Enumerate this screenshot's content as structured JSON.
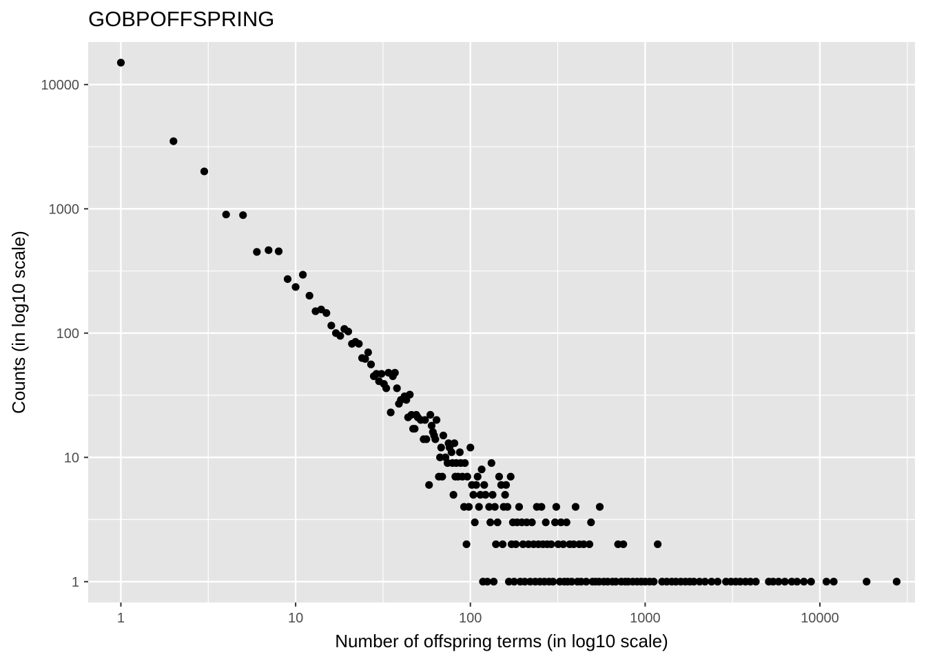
{
  "chart_data": {
    "type": "scatter",
    "title": "GOBPOFFSPRING",
    "xlabel": "Number of offspring terms (in log10 scale)",
    "ylabel": "Counts (in log10 scale)",
    "x_scale": "log10",
    "y_scale": "log10",
    "xlim": [
      0.65,
      35000
    ],
    "ylim": [
      0.68,
      22000
    ],
    "x_ticks": [
      1,
      10,
      100,
      1000,
      10000
    ],
    "x_tick_labels": [
      "1",
      "10",
      "100",
      "1000",
      "10000"
    ],
    "y_ticks": [
      1,
      10,
      100,
      1000,
      10000
    ],
    "y_tick_labels": [
      "1",
      "10",
      "100",
      "1000",
      "10000"
    ],
    "grid": true,
    "colors": {
      "panel": "#e5e5e5",
      "grid": "#ffffff",
      "point": "#000000",
      "tick_text": "#4d4d4d"
    },
    "points": [
      [
        1,
        15000
      ],
      [
        2,
        3500
      ],
      [
        3,
        2000
      ],
      [
        4,
        900
      ],
      [
        5,
        890
      ],
      [
        6,
        450
      ],
      [
        7,
        465
      ],
      [
        8,
        455
      ],
      [
        9,
        272
      ],
      [
        10,
        235
      ],
      [
        11,
        295
      ],
      [
        12,
        200
      ],
      [
        13,
        150
      ],
      [
        14,
        155
      ],
      [
        15,
        145
      ],
      [
        16,
        115
      ],
      [
        17,
        100
      ],
      [
        18,
        95
      ],
      [
        19,
        108
      ],
      [
        20,
        103
      ],
      [
        21,
        82
      ],
      [
        22,
        85
      ],
      [
        23,
        82
      ],
      [
        24,
        63
      ],
      [
        25,
        62
      ],
      [
        26,
        70
      ],
      [
        27,
        56
      ],
      [
        28,
        45
      ],
      [
        29,
        47
      ],
      [
        30,
        41
      ],
      [
        31,
        47
      ],
      [
        32,
        39
      ],
      [
        33,
        36
      ],
      [
        34,
        48
      ],
      [
        35,
        23
      ],
      [
        36,
        45
      ],
      [
        37,
        48
      ],
      [
        38,
        36
      ],
      [
        39,
        27
      ],
      [
        40,
        29
      ],
      [
        42,
        31
      ],
      [
        43,
        29
      ],
      [
        44,
        21
      ],
      [
        45,
        32
      ],
      [
        46,
        22
      ],
      [
        47,
        17
      ],
      [
        48,
        17
      ],
      [
        49,
        22
      ],
      [
        50,
        21
      ],
      [
        52,
        20
      ],
      [
        54,
        14
      ],
      [
        55,
        20
      ],
      [
        56,
        14
      ],
      [
        58,
        6
      ],
      [
        59,
        22
      ],
      [
        60,
        18
      ],
      [
        61,
        16
      ],
      [
        62,
        15
      ],
      [
        63,
        14
      ],
      [
        64,
        20
      ],
      [
        66,
        7
      ],
      [
        67,
        10
      ],
      [
        68,
        12
      ],
      [
        69,
        7
      ],
      [
        70,
        15
      ],
      [
        72,
        10
      ],
      [
        74,
        9
      ],
      [
        75,
        13
      ],
      [
        76,
        12
      ],
      [
        78,
        11
      ],
      [
        79,
        9
      ],
      [
        80,
        5
      ],
      [
        81,
        13
      ],
      [
        82,
        7
      ],
      [
        83,
        9
      ],
      [
        85,
        7
      ],
      [
        87,
        11
      ],
      [
        88,
        9
      ],
      [
        90,
        7
      ],
      [
        92,
        4
      ],
      [
        93,
        9
      ],
      [
        95,
        2
      ],
      [
        96,
        7
      ],
      [
        98,
        4
      ],
      [
        100,
        12
      ],
      [
        102,
        6
      ],
      [
        104,
        5
      ],
      [
        106,
        3
      ],
      [
        108,
        6
      ],
      [
        110,
        7
      ],
      [
        112,
        4
      ],
      [
        114,
        5
      ],
      [
        116,
        8
      ],
      [
        118,
        1
      ],
      [
        120,
        6
      ],
      [
        122,
        5
      ],
      [
        125,
        1
      ],
      [
        128,
        4
      ],
      [
        130,
        3
      ],
      [
        132,
        9
      ],
      [
        134,
        5
      ],
      [
        136,
        1
      ],
      [
        138,
        4
      ],
      [
        140,
        2
      ],
      [
        143,
        3
      ],
      [
        146,
        7
      ],
      [
        150,
        6
      ],
      [
        153,
        2
      ],
      [
        155,
        4
      ],
      [
        158,
        5
      ],
      [
        160,
        6
      ],
      [
        163,
        4
      ],
      [
        166,
        1
      ],
      [
        170,
        7
      ],
      [
        172,
        2
      ],
      [
        175,
        3
      ],
      [
        178,
        1
      ],
      [
        182,
        2
      ],
      [
        185,
        3
      ],
      [
        190,
        4
      ],
      [
        193,
        1
      ],
      [
        197,
        3
      ],
      [
        200,
        2
      ],
      [
        205,
        1
      ],
      [
        210,
        3
      ],
      [
        215,
        2
      ],
      [
        220,
        1
      ],
      [
        225,
        3
      ],
      [
        230,
        2
      ],
      [
        235,
        1
      ],
      [
        240,
        4
      ],
      [
        245,
        2
      ],
      [
        250,
        1
      ],
      [
        255,
        4
      ],
      [
        260,
        2
      ],
      [
        265,
        1
      ],
      [
        270,
        3
      ],
      [
        275,
        2
      ],
      [
        282,
        1
      ],
      [
        290,
        2
      ],
      [
        297,
        1
      ],
      [
        305,
        3
      ],
      [
        310,
        4
      ],
      [
        318,
        2
      ],
      [
        325,
        1
      ],
      [
        330,
        3
      ],
      [
        340,
        2
      ],
      [
        345,
        1
      ],
      [
        355,
        3
      ],
      [
        360,
        1
      ],
      [
        370,
        2
      ],
      [
        380,
        1
      ],
      [
        390,
        2
      ],
      [
        400,
        4
      ],
      [
        410,
        1
      ],
      [
        420,
        2
      ],
      [
        430,
        1
      ],
      [
        445,
        2
      ],
      [
        460,
        1
      ],
      [
        480,
        2
      ],
      [
        490,
        3
      ],
      [
        500,
        1
      ],
      [
        520,
        1
      ],
      [
        545,
        1
      ],
      [
        550,
        4
      ],
      [
        580,
        1
      ],
      [
        610,
        1
      ],
      [
        650,
        1
      ],
      [
        680,
        1
      ],
      [
        700,
        2
      ],
      [
        730,
        1
      ],
      [
        750,
        2
      ],
      [
        770,
        1
      ],
      [
        800,
        1
      ],
      [
        850,
        1
      ],
      [
        900,
        1
      ],
      [
        950,
        1
      ],
      [
        1000,
        1
      ],
      [
        1060,
        1
      ],
      [
        1120,
        1
      ],
      [
        1180,
        2
      ],
      [
        1250,
        1
      ],
      [
        1330,
        1
      ],
      [
        1420,
        1
      ],
      [
        1500,
        1
      ],
      [
        1600,
        1
      ],
      [
        1700,
        1
      ],
      [
        1800,
        1
      ],
      [
        1900,
        1
      ],
      [
        2050,
        1
      ],
      [
        2200,
        1
      ],
      [
        2400,
        1
      ],
      [
        2600,
        1
      ],
      [
        2900,
        1
      ],
      [
        3100,
        1
      ],
      [
        3300,
        1
      ],
      [
        3500,
        1
      ],
      [
        3750,
        1
      ],
      [
        4000,
        1
      ],
      [
        4300,
        1
      ],
      [
        5100,
        1
      ],
      [
        5400,
        1
      ],
      [
        5800,
        1
      ],
      [
        6300,
        1
      ],
      [
        6900,
        1
      ],
      [
        7400,
        1
      ],
      [
        8100,
        1
      ],
      [
        8900,
        1
      ],
      [
        10900,
        1
      ],
      [
        12000,
        1
      ],
      [
        18500,
        1
      ],
      [
        27500,
        1
      ]
    ]
  }
}
